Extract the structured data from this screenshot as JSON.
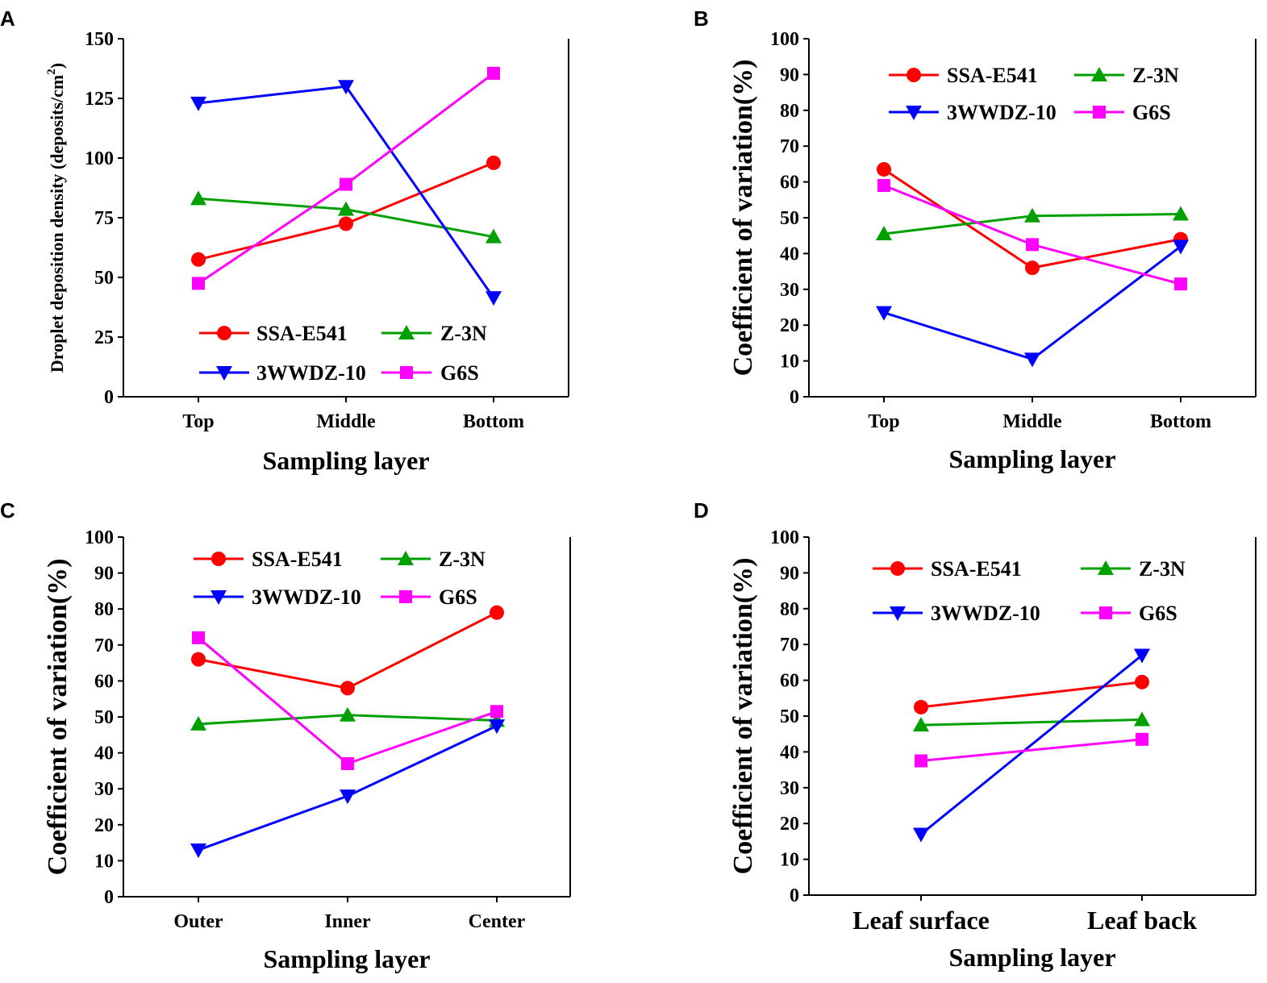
{
  "chart_data": [
    {
      "panel": "A",
      "type": "line",
      "categories": [
        "Top",
        "Middle",
        "Bottom"
      ],
      "xlabel": "Sampling layer",
      "ylabel": "Droplet deposition density (deposits/cm",
      "ylabel_sup": "2",
      "ylabel_end": ")",
      "ylim": [
        0,
        150
      ],
      "yticks": [
        "0",
        "25",
        "50",
        "75",
        "100",
        "125",
        "150"
      ],
      "legend_position": "bottom",
      "series": [
        {
          "name": "SSA-E541",
          "color": "#FF0000",
          "marker": "circle",
          "values": [
            57.5,
            72.5,
            98
          ]
        },
        {
          "name": "Z-3N",
          "color": "#00A000",
          "marker": "triangle-up",
          "values": [
            83,
            78.5,
            67
          ]
        },
        {
          "name": "3WWDZ-10",
          "color": "#0000FF",
          "marker": "triangle-down",
          "values": [
            123,
            130,
            41.5
          ]
        },
        {
          "name": "G6S",
          "color": "#FF00FF",
          "marker": "square",
          "values": [
            47.5,
            89,
            135.5
          ]
        }
      ]
    },
    {
      "panel": "B",
      "type": "line",
      "categories": [
        "Top",
        "Middle",
        "Bottom"
      ],
      "xlabel": "Sampling layer",
      "ylabel": "Coefficient of variation(%)",
      "ylim": [
        0,
        100
      ],
      "yticks": [
        "0",
        "10",
        "20",
        "30",
        "40",
        "50",
        "60",
        "70",
        "80",
        "90",
        "100"
      ],
      "legend_position": "top",
      "series": [
        {
          "name": "SSA-E541",
          "color": "#FF0000",
          "marker": "circle",
          "values": [
            63.5,
            36,
            44
          ]
        },
        {
          "name": "Z-3N",
          "color": "#00A000",
          "marker": "triangle-up",
          "values": [
            45.5,
            50.5,
            51
          ]
        },
        {
          "name": "3WWDZ-10",
          "color": "#0000FF",
          "marker": "triangle-down",
          "values": [
            23.5,
            10.5,
            42
          ]
        },
        {
          "name": "G6S",
          "color": "#FF00FF",
          "marker": "square",
          "values": [
            59,
            42.5,
            31.5
          ]
        }
      ]
    },
    {
      "panel": "C",
      "type": "line",
      "categories": [
        "Outer",
        "Inner",
        "Center"
      ],
      "xlabel": "Sampling layer",
      "ylabel": "Coefficient of variation(%)",
      "ylim": [
        0,
        100
      ],
      "yticks": [
        "0",
        "10",
        "20",
        "30",
        "40",
        "50",
        "60",
        "70",
        "80",
        "90",
        "100"
      ],
      "legend_position": "top",
      "series": [
        {
          "name": "SSA-E541",
          "color": "#FF0000",
          "marker": "circle",
          "values": [
            66,
            58,
            79
          ]
        },
        {
          "name": "Z-3N",
          "color": "#00A000",
          "marker": "triangle-up",
          "values": [
            48,
            50.5,
            49
          ]
        },
        {
          "name": "3WWDZ-10",
          "color": "#0000FF",
          "marker": "triangle-down",
          "values": [
            13,
            28,
            47.5
          ]
        },
        {
          "name": "G6S",
          "color": "#FF00FF",
          "marker": "square",
          "values": [
            72,
            37,
            51.5
          ]
        }
      ]
    },
    {
      "panel": "D",
      "type": "line",
      "categories": [
        "Leaf surface",
        "Leaf back"
      ],
      "xlabel": "Sampling layer",
      "ylabel": "Coefficient of variation(%)",
      "ylim": [
        0,
        100
      ],
      "yticks": [
        "0",
        "10",
        "20",
        "30",
        "40",
        "50",
        "60",
        "70",
        "80",
        "90",
        "100"
      ],
      "legend_position": "top",
      "series": [
        {
          "name": "SSA-E541",
          "color": "#FF0000",
          "marker": "circle",
          "values": [
            52.5,
            59.5
          ]
        },
        {
          "name": "Z-3N",
          "color": "#00A000",
          "marker": "triangle-up",
          "values": [
            47.5,
            49
          ]
        },
        {
          "name": "3WWDZ-10",
          "color": "#0000FF",
          "marker": "triangle-down",
          "values": [
            17,
            67
          ]
        },
        {
          "name": "G6S",
          "color": "#FF00FF",
          "marker": "square",
          "values": [
            37.5,
            43.5
          ]
        }
      ]
    }
  ]
}
